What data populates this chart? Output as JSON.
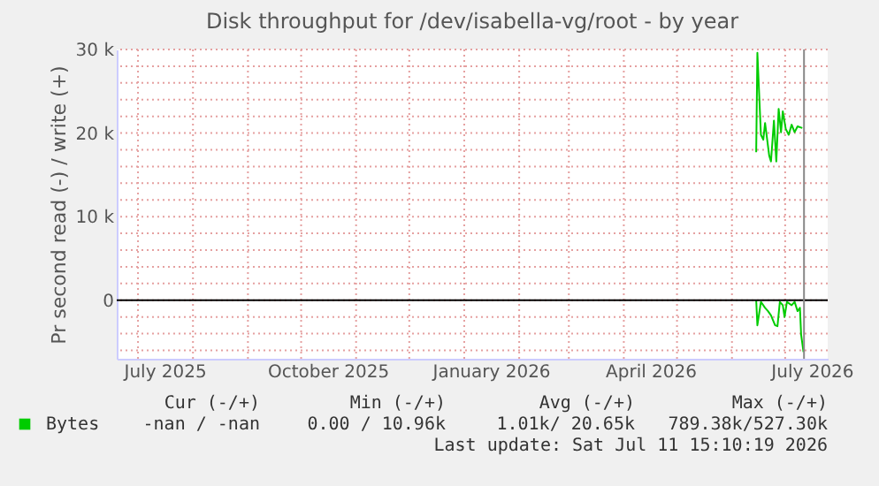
{
  "chart_data": {
    "type": "line",
    "title": "Disk throughput for /dev/isabella-vg/root - by year",
    "ylabel": "Pr second read (-) / write (+)",
    "xlim": [
      "2025-06-19",
      "2026-07-25"
    ],
    "xticks": [
      {
        "value": "2025-07-01",
        "label": null
      },
      {
        "value": "2025-07-16",
        "label": "July 2025"
      },
      {
        "value": "2025-08-01",
        "label": null
      },
      {
        "value": "2025-09-01",
        "label": null
      },
      {
        "value": "2025-10-01",
        "label": null
      },
      {
        "value": "2025-10-16",
        "label": "October 2025"
      },
      {
        "value": "2025-11-01",
        "label": null
      },
      {
        "value": "2025-12-01",
        "label": null
      },
      {
        "value": "2026-01-01",
        "label": null
      },
      {
        "value": "2026-01-16",
        "label": "January 2026"
      },
      {
        "value": "2026-02-01",
        "label": null
      },
      {
        "value": "2026-03-01",
        "label": null
      },
      {
        "value": "2026-04-01",
        "label": null
      },
      {
        "value": "2026-04-16",
        "label": "April 2026"
      },
      {
        "value": "2026-05-01",
        "label": null
      },
      {
        "value": "2026-06-01",
        "label": null
      },
      {
        "value": "2026-07-01",
        "label": null
      },
      {
        "value": "2026-07-16",
        "label": "July 2026"
      }
    ],
    "ylim": [
      -7000,
      30000
    ],
    "yticks": [
      {
        "value": -6000,
        "label": null
      },
      {
        "value": -4000,
        "label": null
      },
      {
        "value": -2000,
        "label": null
      },
      {
        "value": 0,
        "label": "0"
      },
      {
        "value": 2000,
        "label": null
      },
      {
        "value": 4000,
        "label": null
      },
      {
        "value": 6000,
        "label": null
      },
      {
        "value": 8000,
        "label": null
      },
      {
        "value": 10000,
        "label": "10 k"
      },
      {
        "value": 12000,
        "label": null
      },
      {
        "value": 14000,
        "label": null
      },
      {
        "value": 16000,
        "label": null
      },
      {
        "value": 18000,
        "label": null
      },
      {
        "value": 20000,
        "label": "20 k"
      },
      {
        "value": 22000,
        "label": null
      },
      {
        "value": 24000,
        "label": null
      },
      {
        "value": 26000,
        "label": null
      },
      {
        "value": 28000,
        "label": null
      },
      {
        "value": 30000,
        "label": "30 k"
      }
    ],
    "grid": true,
    "legend": "bottom left",
    "series": [
      {
        "name": "Bytes",
        "color": "#00cc00",
        "x": [
          "2026-06-14T16:00",
          "2026-06-15T08:00",
          "2026-06-17T08:00",
          "2026-06-18T16:00",
          "2026-06-19T16:00",
          "2026-06-22",
          "2026-06-23",
          "2026-06-24T16:00",
          "2026-06-26",
          "2026-06-27T08:00",
          "2026-06-28T16:00",
          "2026-06-29T16:00",
          "2026-07-01T08:00",
          "2026-07-03",
          "2026-07-04T16:00",
          "2026-07-06T08:00",
          "2026-07-08",
          "2026-07-10T16:00"
        ],
        "values": [
          17700,
          29600,
          19800,
          19200,
          21200,
          17300,
          16600,
          21500,
          16600,
          22900,
          20100,
          22600,
          20500,
          19800,
          21000,
          20100,
          20800,
          20600
        ]
      },
      {
        "color": "#00cc00",
        "x": [
          "2026-06-14T16:00",
          "2026-06-15T08:00",
          "2026-06-17T08:00",
          "2026-06-19T16:00",
          "2026-06-21T08:00",
          "2026-06-23",
          "2026-06-25T08:00",
          "2026-06-26T16:00",
          "2026-06-28",
          "2026-06-29T16:00",
          "2026-06-30T16:00",
          "2026-07-02",
          "2026-07-04T16:00",
          "2026-07-06T08:00",
          "2026-07-08",
          "2026-07-09T08:00",
          "2026-07-10",
          "2026-07-11T08:00"
        ],
        "values": [
          0,
          -3000,
          -200,
          -900,
          -1300,
          -1800,
          -3000,
          -3100,
          -200,
          -600,
          -2000,
          -200,
          -600,
          -200,
          -1300,
          -900,
          -4100,
          -6200
        ]
      }
    ],
    "ref_lines": [
      {
        "axis": "y",
        "value": 0,
        "color": "#000000"
      },
      {
        "axis": "x",
        "value": "2026-07-11T15:10",
        "color": "#888888"
      }
    ],
    "annotations": [
      "Cur (-/+)",
      "Min (-/+)",
      "Avg (-/+)",
      "Max (-/+)",
      "-nan /  -nan",
      "0.00 / 10.96k",
      "1.01k/ 20.65k",
      "789.38k/527.30k",
      "Last update: Sat Jul 11 15:10:19 2026"
    ]
  }
}
